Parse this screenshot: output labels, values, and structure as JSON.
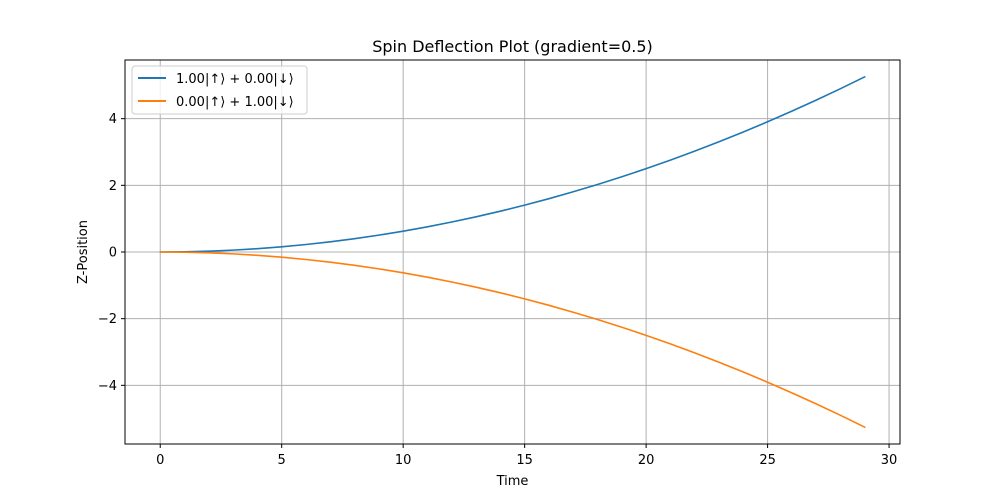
{
  "chart_data": {
    "type": "line",
    "title": "Spin Deflection Plot (gradient=0.5)",
    "xlabel": "Time",
    "ylabel": "Z-Position",
    "xlim": [
      -1.45,
      30.45
    ],
    "ylim": [
      -5.76,
      5.76
    ],
    "xticks": [
      0,
      5,
      10,
      15,
      20,
      25,
      30
    ],
    "xtick_labels": [
      "0",
      "5",
      "10",
      "15",
      "20",
      "25",
      "30"
    ],
    "yticks": [
      -4,
      -2,
      0,
      2,
      4
    ],
    "ytick_labels": [
      "−4",
      "−2",
      "0",
      "2",
      "4"
    ],
    "grid": true,
    "legend_position": "top-left",
    "x": [
      0,
      1,
      2,
      3,
      4,
      5,
      6,
      7,
      8,
      9,
      10,
      11,
      12,
      13,
      14,
      15,
      16,
      17,
      18,
      19,
      20,
      21,
      22,
      23,
      24,
      25,
      26,
      27,
      28,
      29
    ],
    "series": [
      {
        "name": "1.00|↑⟩ + 0.00|↓⟩",
        "color": "#1f77b4",
        "values": [
          0,
          0.00625,
          0.025,
          0.05625,
          0.1,
          0.15625,
          0.225,
          0.30625,
          0.4,
          0.50625,
          0.625,
          0.75625,
          0.9,
          1.05625,
          1.225,
          1.40625,
          1.6,
          1.80625,
          2.025,
          2.25625,
          2.5,
          2.75625,
          3.025,
          3.30625,
          3.6,
          3.90625,
          4.225,
          4.55625,
          4.9,
          5.25625
        ]
      },
      {
        "name": "0.00|↑⟩ + 1.00|↓⟩",
        "color": "#ff7f0e",
        "values": [
          0,
          -0.00625,
          -0.025,
          -0.05625,
          -0.1,
          -0.15625,
          -0.225,
          -0.30625,
          -0.4,
          -0.50625,
          -0.625,
          -0.75625,
          -0.9,
          -1.05625,
          -1.225,
          -1.40625,
          -1.6,
          -1.80625,
          -2.025,
          -2.25625,
          -2.5,
          -2.75625,
          -3.025,
          -3.30625,
          -3.6,
          -3.90625,
          -4.225,
          -4.55625,
          -4.9,
          -5.25625
        ]
      }
    ]
  }
}
